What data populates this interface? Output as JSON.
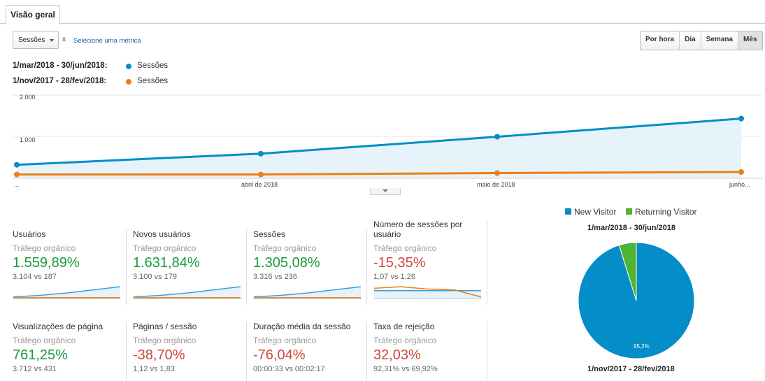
{
  "tab": {
    "label": "Visão geral"
  },
  "metric_selector": {
    "value": "Sessões",
    "remove": "x",
    "add_metric_link": "Selecione uma métrica"
  },
  "periods": [
    "Por hora",
    "Dia",
    "Semana",
    "Mês"
  ],
  "periods_selected": "Mês",
  "comparison": {
    "range1": "1/mar/2018 - 30/jun/2018:",
    "range2": "1/nov/2017 - 28/fev/2018:",
    "series1_label": "Sessões",
    "series2_label": "Sessões"
  },
  "colors": {
    "current": "#058dc7",
    "previous": "#ed7e17",
    "new_visitor": "#058dc7",
    "returning_visitor": "#50b432",
    "positive": "#1a9a3c",
    "negative": "#d2463b"
  },
  "chart_data": {
    "type": "line",
    "x": [
      "...",
      "abril de 2018",
      "maio de 2018",
      "junho..."
    ],
    "y_ticks": [
      "2.000",
      "1.000"
    ],
    "ylim": [
      0,
      2000
    ],
    "series": [
      {
        "name": "Sessões",
        "values": [
          310,
          580,
          990,
          1430
        ]
      },
      {
        "name": "Sessões",
        "values": [
          75,
          75,
          110,
          135
        ]
      }
    ],
    "area": true,
    "grid": true
  },
  "scorecards": [
    {
      "title": "Usuários",
      "segment": "Tráfego orgânico",
      "change": "1.559,89%",
      "trend": "up",
      "compare": "3.104 vs 187",
      "spark_current": [
        2,
        4,
        7,
        11,
        15
      ],
      "spark_previous": [
        1,
        1,
        1,
        1,
        1
      ]
    },
    {
      "title": "Novos usuários",
      "segment": "Tráfego orgânico",
      "change": "1.631,84%",
      "trend": "up",
      "compare": "3.100 vs 179",
      "spark_current": [
        2,
        4,
        7,
        11,
        15
      ],
      "spark_previous": [
        1,
        1,
        1,
        1,
        1
      ]
    },
    {
      "title": "Sessões",
      "segment": "Tráfego orgânico",
      "change": "1.305,08%",
      "trend": "up",
      "compare": "3.316 vs 236",
      "spark_current": [
        2,
        4,
        7,
        11,
        15
      ],
      "spark_previous": [
        1,
        1,
        1,
        1,
        1
      ]
    },
    {
      "title": "Número de sessões por usuário",
      "segment": "Tráfego orgânico",
      "change": "-15,35%",
      "trend": "down",
      "compare": "1,07 vs 1,26",
      "spark_current": [
        10,
        10,
        10,
        10,
        10
      ],
      "spark_previous": [
        13,
        15,
        12,
        11,
        2
      ]
    },
    {
      "title": "Visualizações de página",
      "segment": "Tráfego orgânico",
      "change": "761,25%",
      "trend": "up",
      "compare": "3.712 vs 431"
    },
    {
      "title": "Páginas / sessão",
      "segment": "Tráfego orgânico",
      "change": "-38,70%",
      "trend": "down",
      "compare": "1,12 vs 1,83"
    },
    {
      "title": "Duração média da sessão",
      "segment": "Tráfego orgânico",
      "change": "-76,04%",
      "trend": "down",
      "compare": "00:00:33 vs 00:02:17"
    },
    {
      "title": "Taxa de rejeição",
      "segment": "Tráfego orgânico",
      "change": "32,03%",
      "trend": "down",
      "compare": "92,31% vs 69,92%"
    }
  ],
  "pie": {
    "legend": [
      "New Visitor",
      "Returning Visitor"
    ],
    "title_top": "1/mar/2018 - 30/jun/2018",
    "title_bottom": "1/nov/2017 - 28/fev/2018",
    "slices": [
      {
        "name": "New Visitor",
        "value": 95.2
      },
      {
        "name": "Returning Visitor",
        "value": 4.8
      }
    ],
    "slice_label": "95,2%"
  }
}
